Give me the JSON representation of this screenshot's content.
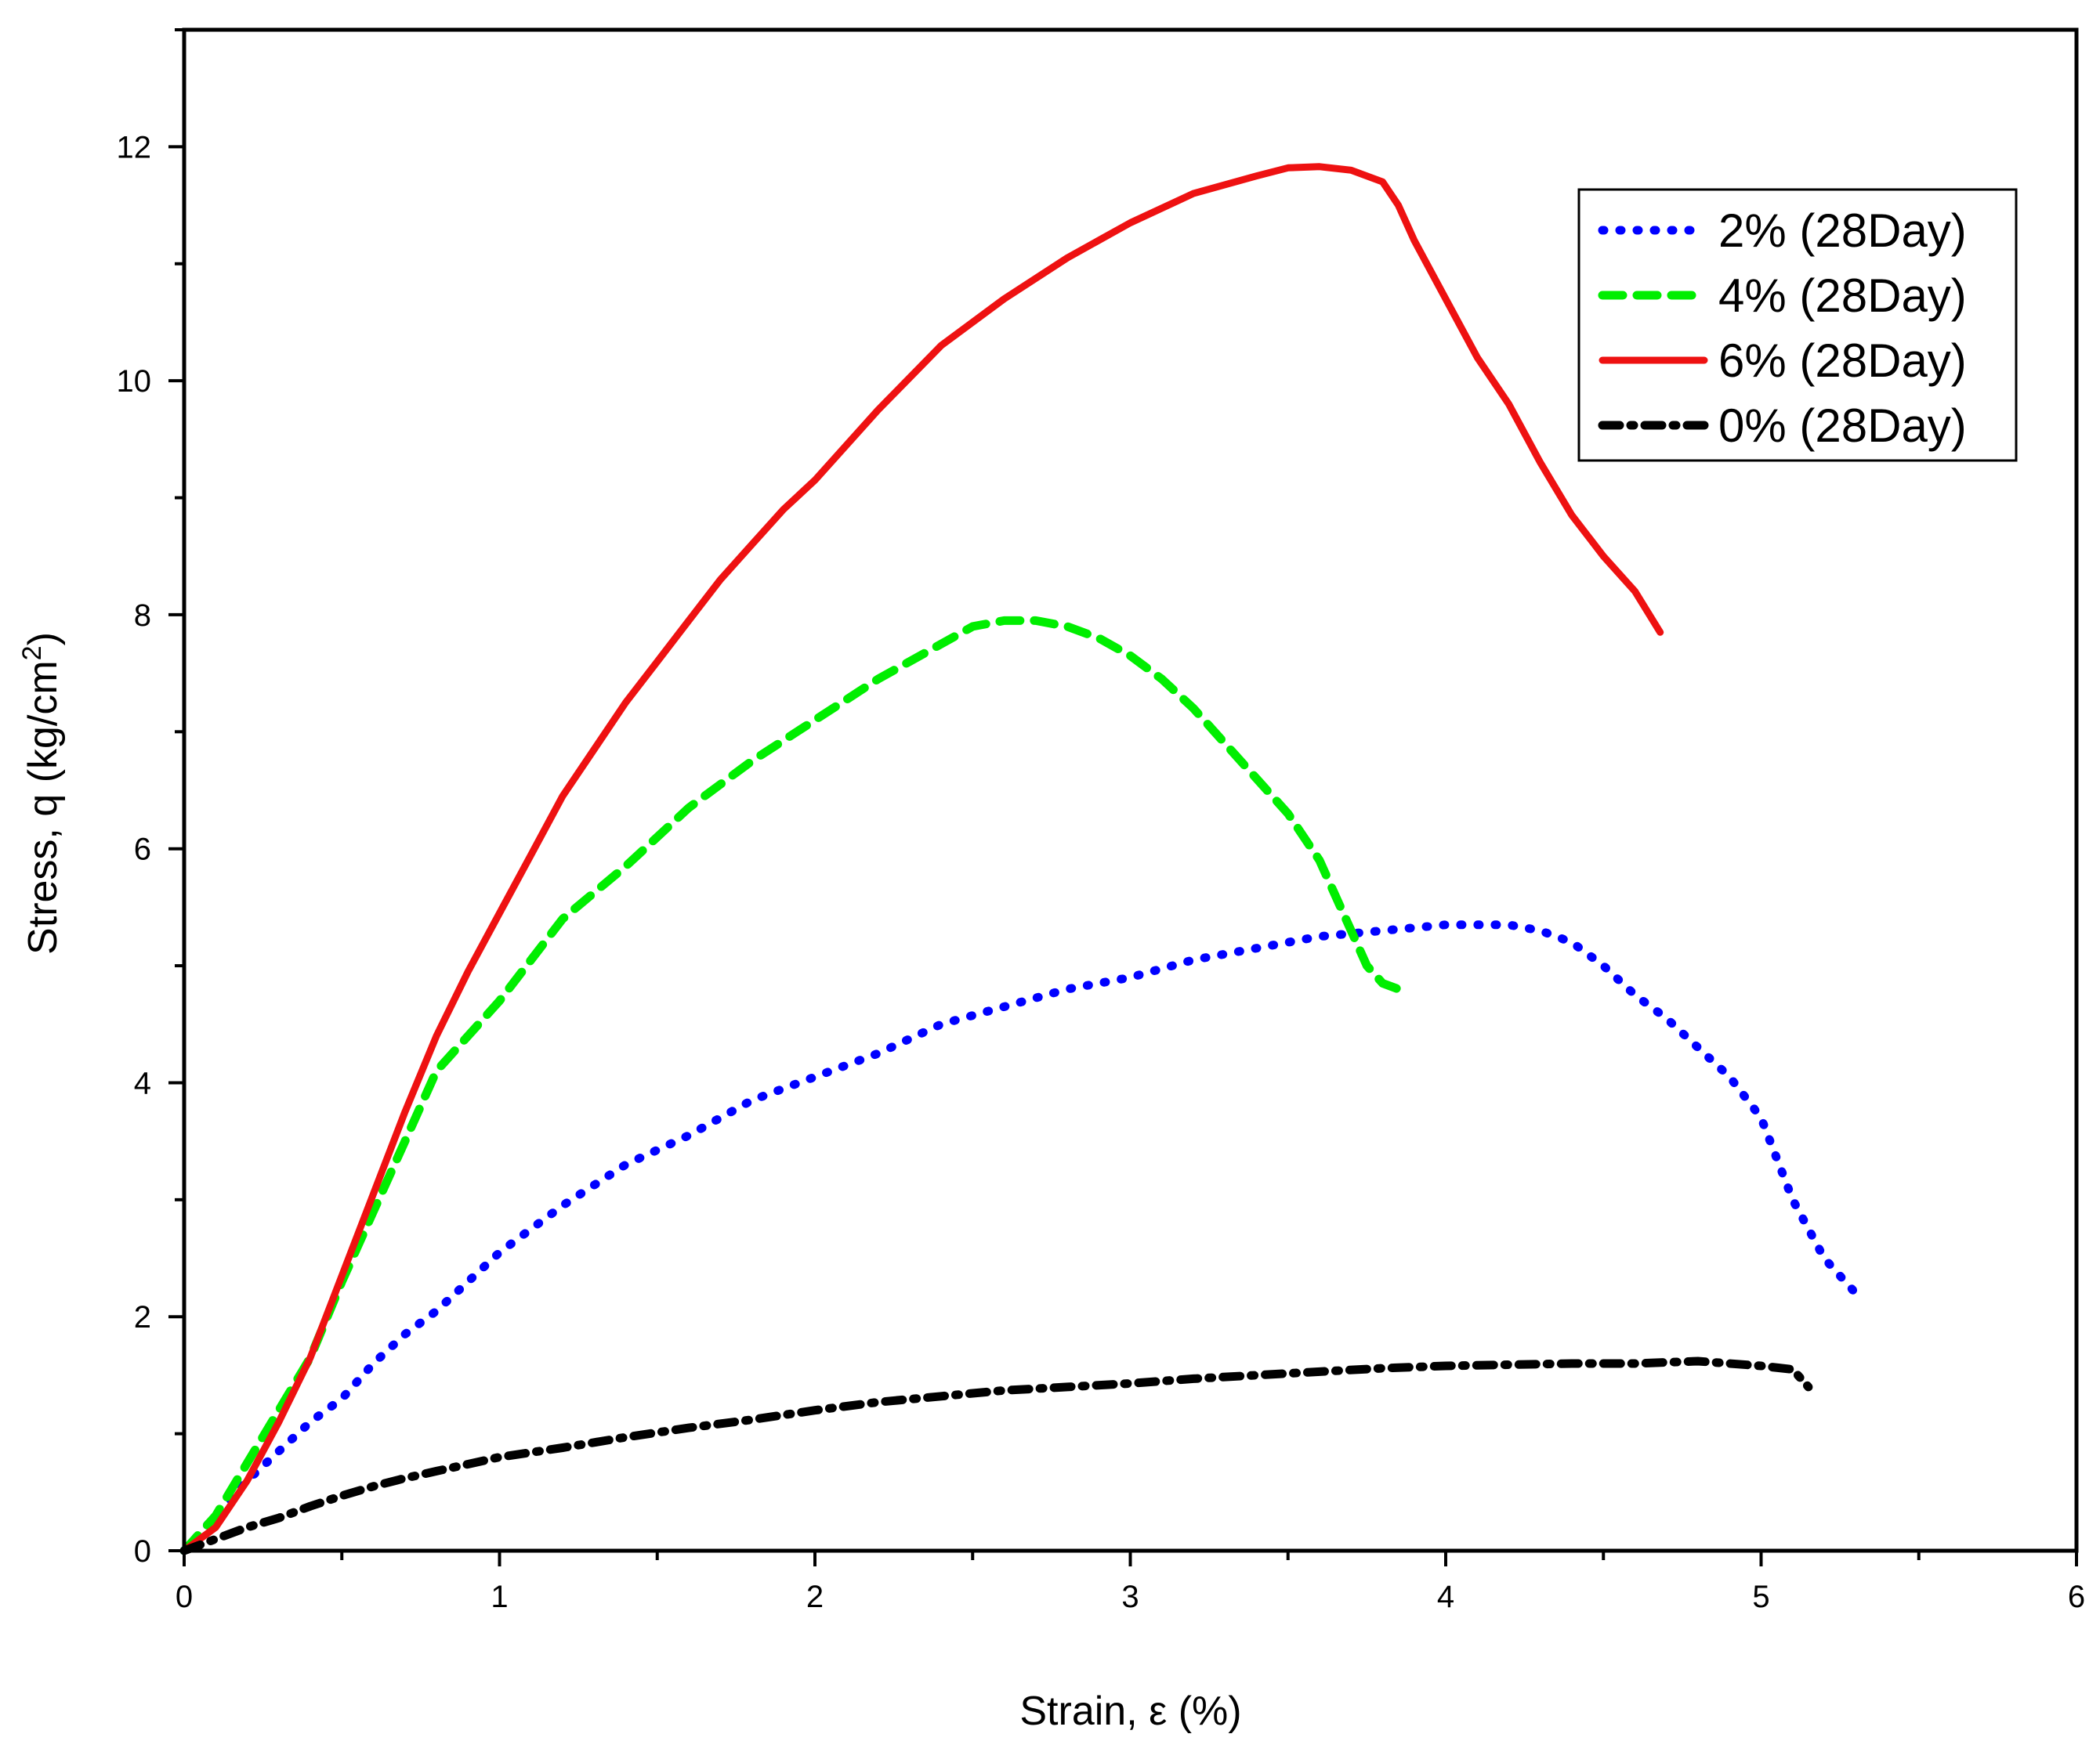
{
  "chart_data": {
    "type": "line",
    "title": "",
    "xlabel": "Strain, ε (%)",
    "ylabel": "Stress, q (kg/cm²)",
    "ylabel_main": "Stress, q (kg/cm",
    "ylabel_sup": "2",
    "ylabel_tail": ")",
    "xlim": [
      0,
      6
    ],
    "ylim": [
      0,
      13
    ],
    "xticks": [
      0,
      1,
      2,
      3,
      4,
      5,
      6
    ],
    "xtick_labels": [
      "0",
      "1",
      "2",
      "3",
      "4",
      "5",
      "6"
    ],
    "yticks": [
      0,
      2,
      4,
      6,
      8,
      10,
      12
    ],
    "ytick_labels": [
      "0",
      "2",
      "4",
      "6",
      "8",
      "10",
      "12"
    ],
    "grid": false,
    "legend_position": "top-right",
    "series": [
      {
        "name": "2% (28Day)",
        "color": "#0000ff",
        "style": "dotted",
        "x": [
          0,
          0.1,
          0.2,
          0.3,
          0.4,
          0.5,
          0.6,
          0.7,
          0.8,
          0.9,
          1.0,
          1.2,
          1.4,
          1.6,
          1.8,
          2.0,
          2.2,
          2.4,
          2.6,
          2.8,
          3.0,
          3.2,
          3.4,
          3.6,
          3.8,
          4.0,
          4.1,
          4.2,
          4.3,
          4.4,
          4.5,
          4.6,
          4.7,
          4.8,
          4.9,
          5.0,
          5.1,
          5.2,
          5.3
        ],
        "y": [
          0,
          0.3,
          0.6,
          0.85,
          1.1,
          1.3,
          1.6,
          1.85,
          2.05,
          2.3,
          2.55,
          2.95,
          3.3,
          3.55,
          3.85,
          4.05,
          4.25,
          4.5,
          4.65,
          4.8,
          4.9,
          5.05,
          5.15,
          5.25,
          5.3,
          5.35,
          5.35,
          5.35,
          5.3,
          5.2,
          5.0,
          4.75,
          4.55,
          4.3,
          4.05,
          3.7,
          3.0,
          2.5,
          2.2
        ]
      },
      {
        "name": "4% (28Day)",
        "color": "#00ee00",
        "style": "dashed",
        "x": [
          0,
          0.1,
          0.2,
          0.3,
          0.4,
          0.5,
          0.6,
          0.7,
          0.8,
          0.9,
          1.0,
          1.2,
          1.4,
          1.6,
          1.8,
          2.0,
          2.2,
          2.4,
          2.5,
          2.6,
          2.7,
          2.8,
          2.9,
          3.0,
          3.1,
          3.2,
          3.3,
          3.4,
          3.5,
          3.6,
          3.65,
          3.7,
          3.75,
          3.8,
          3.85,
          3.88
        ],
        "y": [
          0,
          0.3,
          0.75,
          1.2,
          1.65,
          2.3,
          2.9,
          3.5,
          4.1,
          4.4,
          4.7,
          5.4,
          5.85,
          6.35,
          6.75,
          7.1,
          7.45,
          7.75,
          7.9,
          7.95,
          7.95,
          7.9,
          7.8,
          7.65,
          7.45,
          7.2,
          6.9,
          6.6,
          6.3,
          5.9,
          5.6,
          5.3,
          5.0,
          4.85,
          4.8,
          4.75
        ]
      },
      {
        "name": "6% (28Day)",
        "color": "#ee1111",
        "style": "solid",
        "x": [
          0,
          0.1,
          0.2,
          0.3,
          0.4,
          0.5,
          0.6,
          0.7,
          0.8,
          0.9,
          1.0,
          1.1,
          1.2,
          1.3,
          1.4,
          1.5,
          1.6,
          1.7,
          1.8,
          1.9,
          2.0,
          2.2,
          2.4,
          2.6,
          2.8,
          3.0,
          3.2,
          3.4,
          3.5,
          3.6,
          3.7,
          3.8,
          3.85,
          3.9,
          4.0,
          4.1,
          4.2,
          4.3,
          4.4,
          4.5,
          4.6,
          4.68
        ],
        "y": [
          0,
          0.2,
          0.6,
          1.1,
          1.65,
          2.35,
          3.05,
          3.75,
          4.4,
          4.95,
          5.45,
          5.95,
          6.45,
          6.85,
          7.25,
          7.6,
          7.95,
          8.3,
          8.6,
          8.9,
          9.15,
          9.75,
          10.3,
          10.7,
          11.05,
          11.35,
          11.6,
          11.75,
          11.82,
          11.83,
          11.8,
          11.7,
          11.5,
          11.2,
          10.7,
          10.2,
          9.8,
          9.3,
          8.85,
          8.5,
          8.2,
          7.85
        ]
      },
      {
        "name": "0% (28Day)",
        "color": "#000000",
        "style": "dashdot",
        "x": [
          0,
          0.1,
          0.2,
          0.3,
          0.4,
          0.5,
          0.6,
          0.7,
          0.8,
          0.9,
          1.0,
          1.2,
          1.4,
          1.6,
          1.8,
          2.0,
          2.2,
          2.4,
          2.6,
          2.8,
          3.0,
          3.2,
          3.4,
          3.6,
          3.8,
          4.0,
          4.2,
          4.4,
          4.6,
          4.8,
          4.9,
          5.0,
          5.1,
          5.15
        ],
        "y": [
          0,
          0.1,
          0.2,
          0.28,
          0.38,
          0.47,
          0.55,
          0.62,
          0.68,
          0.74,
          0.8,
          0.88,
          0.97,
          1.05,
          1.12,
          1.2,
          1.27,
          1.32,
          1.37,
          1.4,
          1.43,
          1.47,
          1.5,
          1.53,
          1.56,
          1.58,
          1.59,
          1.6,
          1.6,
          1.62,
          1.6,
          1.58,
          1.55,
          1.4
        ]
      }
    ]
  }
}
